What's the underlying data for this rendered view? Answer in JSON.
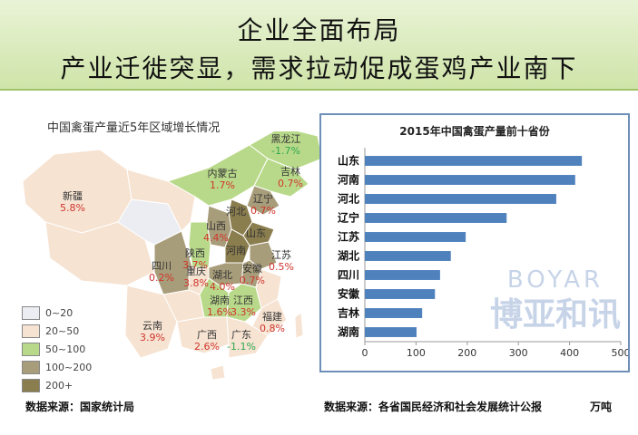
{
  "header": {
    "title_line1": "企业全面布局",
    "title_line2": "产业迁徙突显，需求拉动促成蛋鸡产业南下"
  },
  "map": {
    "title": "中国禽蛋产量近5年区域增长情况",
    "regions": [
      {
        "name": "黑龙江",
        "growth": "-1.7%",
        "color": "#b9d98a"
      },
      {
        "name": "吉林",
        "growth": "0.7%",
        "color": "#b9d98a"
      },
      {
        "name": "内蒙古",
        "growth": "1.7%",
        "color": "#b9d98a"
      },
      {
        "name": "辽宁",
        "growth": "0.7%",
        "color": "#a89d7a"
      },
      {
        "name": "新疆",
        "growth": "5.8%",
        "color": "#f6e3d2"
      },
      {
        "name": "河北",
        "growth": "",
        "color": "#8a7d4e"
      },
      {
        "name": "山西",
        "growth": "4.4%",
        "color": "#a89d7a"
      },
      {
        "name": "山东",
        "growth": "",
        "color": "#8a7d4e"
      },
      {
        "name": "河南",
        "growth": "",
        "color": "#8a7d4e"
      },
      {
        "name": "陕西",
        "growth": "3.7%",
        "color": "#b9d98a"
      },
      {
        "name": "江苏",
        "growth": "0.5%",
        "color": "#a89d7a"
      },
      {
        "name": "安徽",
        "growth": "0.7%",
        "color": "#a89d7a"
      },
      {
        "name": "湖北",
        "growth": "4.0%",
        "color": "#a89d7a"
      },
      {
        "name": "四川",
        "growth": "0.2%",
        "color": "#a89d7a"
      },
      {
        "name": "重庆",
        "growth": "3.8%",
        "color": "#f6e3d2"
      },
      {
        "name": "湖南",
        "growth": "1.6%",
        "color": "#b9d98a"
      },
      {
        "name": "江西",
        "growth": "3.3%",
        "color": "#b9d98a"
      },
      {
        "name": "云南",
        "growth": "3.9%",
        "color": "#f6e3d2"
      },
      {
        "name": "广西",
        "growth": "2.6%",
        "color": "#f6e3d2"
      },
      {
        "name": "广东",
        "growth": "-1.1%",
        "color": "#f6e3d2"
      },
      {
        "name": "福建",
        "growth": "0.8%",
        "color": "#f6e3d2"
      }
    ],
    "legend": [
      {
        "label": "0~20",
        "color": "#ecedf3"
      },
      {
        "label": "20~50",
        "color": "#f6e3d2"
      },
      {
        "label": "50~100",
        "color": "#b9d98a"
      },
      {
        "label": "100~200",
        "color": "#a89d7a"
      },
      {
        "label": "200+",
        "color": "#8a7d4e"
      }
    ],
    "negative_color": "#2fa84f",
    "positive_color": "#d0352d"
  },
  "chart_data": {
    "type": "bar",
    "orientation": "horizontal",
    "title": "2015年中国禽蛋产量前十省份",
    "categories": [
      "山东",
      "河南",
      "河北",
      "辽宁",
      "江苏",
      "湖北",
      "四川",
      "安徽",
      "吉林",
      "湖南"
    ],
    "values": [
      424,
      411,
      374,
      277,
      197,
      168,
      147,
      137,
      112,
      101
    ],
    "xlim": [
      0,
      500
    ],
    "xticks": [
      0,
      100,
      200,
      300,
      400,
      500
    ],
    "bar_color": "#4f81bd",
    "watermark": {
      "latin": "BOYAR",
      "chinese": "博亚和讯"
    }
  },
  "footnotes": {
    "left": "数据来源：国家统计局",
    "right": "数据来源：各省国民经济和社会发展统计公报",
    "unit": "万吨"
  }
}
